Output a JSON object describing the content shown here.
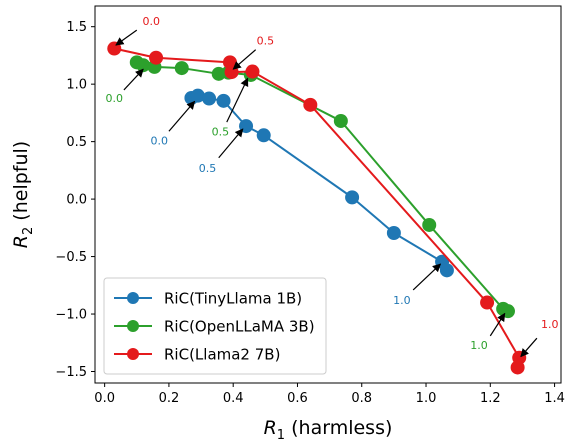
{
  "chart_data": {
    "type": "line",
    "xlabel_symbol": "R",
    "xlabel_sub": "1",
    "xlabel_text": " (harmless)",
    "ylabel_symbol": "R",
    "ylabel_sub": "2",
    "ylabel_text": " (helpful)",
    "xlim": [
      -0.03,
      1.42
    ],
    "ylim": [
      -1.6,
      1.68
    ],
    "xticks": [
      0.0,
      0.2,
      0.4,
      0.6,
      0.8,
      1.0,
      1.2,
      1.4
    ],
    "xtick_labels": [
      "0.0",
      "0.2",
      "0.4",
      "0.6",
      "0.8",
      "1.0",
      "1.2",
      "1.4"
    ],
    "yticks": [
      -1.5,
      -1.0,
      -0.5,
      0.0,
      0.5,
      1.0,
      1.5
    ],
    "ytick_labels": [
      "−1.5",
      "−1.0",
      "−0.5",
      "0.0",
      "0.5",
      "1.0",
      "1.5"
    ],
    "legend_position": "lower-left",
    "series": [
      {
        "name": "RiC(TinyLlama 1B)",
        "color": "#1f77b4",
        "points": [
          [
            0.27,
            0.88
          ],
          [
            0.29,
            0.9
          ],
          [
            0.325,
            0.875
          ],
          [
            0.37,
            0.855
          ],
          [
            0.44,
            0.635
          ],
          [
            0.495,
            0.555
          ],
          [
            0.77,
            0.015
          ],
          [
            0.9,
            -0.295
          ],
          [
            1.05,
            -0.545
          ],
          [
            1.065,
            -0.62
          ]
        ]
      },
      {
        "name": "RiC(OpenLLaMA 3B)",
        "color": "#2ca02c",
        "points": [
          [
            0.1,
            1.19
          ],
          [
            0.12,
            1.165
          ],
          [
            0.155,
            1.15
          ],
          [
            0.24,
            1.14
          ],
          [
            0.355,
            1.09
          ],
          [
            0.385,
            1.1
          ],
          [
            0.455,
            1.08
          ],
          [
            0.735,
            0.68
          ],
          [
            1.01,
            -0.225
          ],
          [
            1.24,
            -0.955
          ],
          [
            1.255,
            -0.975
          ]
        ]
      },
      {
        "name": "RiC(Llama2 7B)",
        "color": "#e41a1c",
        "points": [
          [
            0.03,
            1.31
          ],
          [
            0.16,
            1.23
          ],
          [
            0.39,
            1.19
          ],
          [
            0.395,
            1.105
          ],
          [
            0.46,
            1.11
          ],
          [
            0.64,
            0.82
          ],
          [
            1.19,
            -0.9
          ],
          [
            1.29,
            -1.38
          ],
          [
            1.285,
            -1.465
          ]
        ]
      }
    ],
    "annotations": [
      {
        "text": "0.0",
        "color": "#e41a1c",
        "label_at": [
          0.145,
          1.55
        ],
        "arrow_from": [
          0.1,
          1.47
        ],
        "arrow_to": [
          0.035,
          1.34
        ]
      },
      {
        "text": "0.5",
        "color": "#e41a1c",
        "label_at": [
          0.5,
          1.38
        ],
        "arrow_from": [
          0.47,
          1.3
        ],
        "arrow_to": [
          0.4,
          1.13
        ]
      },
      {
        "text": "0.0",
        "color": "#2ca02c",
        "label_at": [
          0.03,
          0.88
        ],
        "arrow_from": [
          0.06,
          0.95
        ],
        "arrow_to": [
          0.12,
          1.13
        ]
      },
      {
        "text": "0.0",
        "color": "#1f77b4",
        "label_at": [
          0.17,
          0.51
        ],
        "arrow_from": [
          0.2,
          0.59
        ],
        "arrow_to": [
          0.28,
          0.85
        ]
      },
      {
        "text": "0.5",
        "color": "#2ca02c",
        "label_at": [
          0.36,
          0.59
        ],
        "arrow_from": [
          0.38,
          0.67
        ],
        "arrow_to": [
          0.445,
          1.05
        ]
      },
      {
        "text": "0.5",
        "color": "#1f77b4",
        "label_at": [
          0.32,
          0.27
        ],
        "arrow_from": [
          0.355,
          0.36
        ],
        "arrow_to": [
          0.43,
          0.61
        ]
      },
      {
        "text": "1.0",
        "color": "#1f77b4",
        "label_at": [
          0.925,
          -0.88
        ],
        "arrow_from": [
          0.96,
          -0.79
        ],
        "arrow_to": [
          1.045,
          -0.565
        ]
      },
      {
        "text": "1.0",
        "color": "#2ca02c",
        "label_at": [
          1.165,
          -1.27
        ],
        "arrow_from": [
          1.2,
          -1.19
        ],
        "arrow_to": [
          1.245,
          -0.995
        ]
      },
      {
        "text": "1.0",
        "color": "#e41a1c",
        "label_at": [
          1.385,
          -1.085
        ],
        "arrow_from": [
          1.345,
          -1.21
        ],
        "arrow_to": [
          1.295,
          -1.37
        ]
      }
    ]
  }
}
